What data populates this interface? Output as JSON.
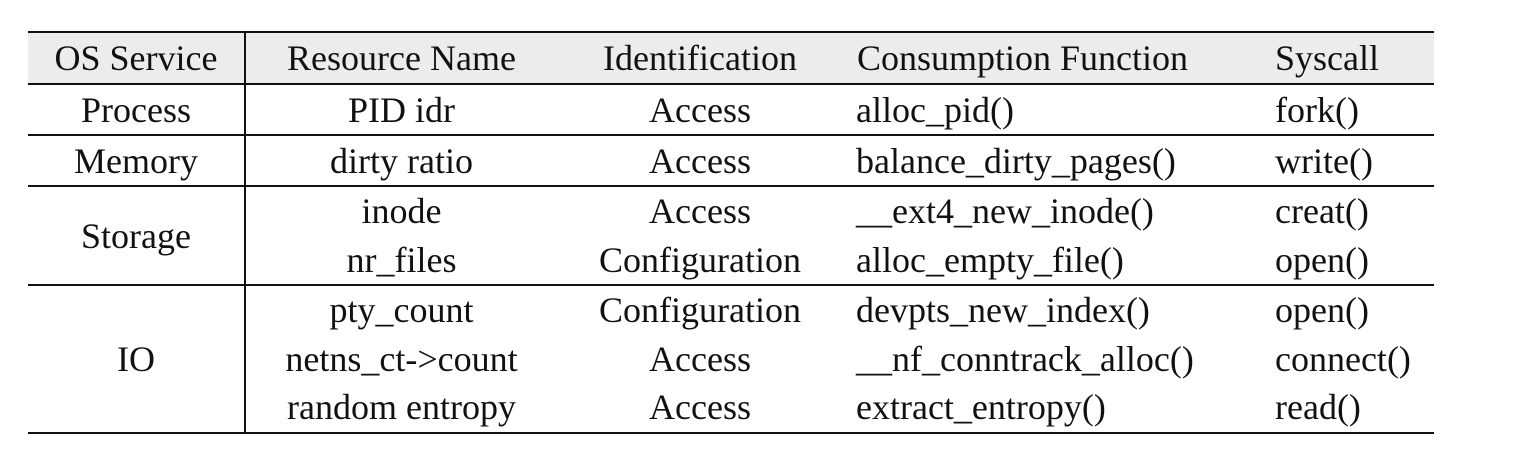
{
  "table": {
    "headers": [
      "OS Service",
      "Resource Name",
      "Identification",
      "Consumption Function",
      "Syscall"
    ],
    "groups": [
      {
        "service": "Process",
        "rows": [
          {
            "resource": "PID idr",
            "identification": "Access",
            "function": "alloc_pid()",
            "syscall": "fork()"
          }
        ]
      },
      {
        "service": "Memory",
        "rows": [
          {
            "resource": "dirty ratio",
            "identification": "Access",
            "function": "balance_dirty_pages()",
            "syscall": "write()"
          }
        ]
      },
      {
        "service": "Storage",
        "rows": [
          {
            "resource": "inode",
            "identification": "Access",
            "function": "__ext4_new_inode()",
            "syscall": "creat()"
          },
          {
            "resource": "nr_files",
            "identification": "Configuration",
            "function": "alloc_empty_file()",
            "syscall": "open()"
          }
        ]
      },
      {
        "service": "IO",
        "rows": [
          {
            "resource": "pty_count",
            "identification": "Configuration",
            "function": "devpts_new_index()",
            "syscall": "open()"
          },
          {
            "resource": "netns_ct->count",
            "identification": "Access",
            "function": "__nf_conntrack_alloc()",
            "syscall": "connect()"
          },
          {
            "resource": "random entropy",
            "identification": "Access",
            "function": "extract_entropy()",
            "syscall": "read()"
          }
        ]
      }
    ]
  }
}
